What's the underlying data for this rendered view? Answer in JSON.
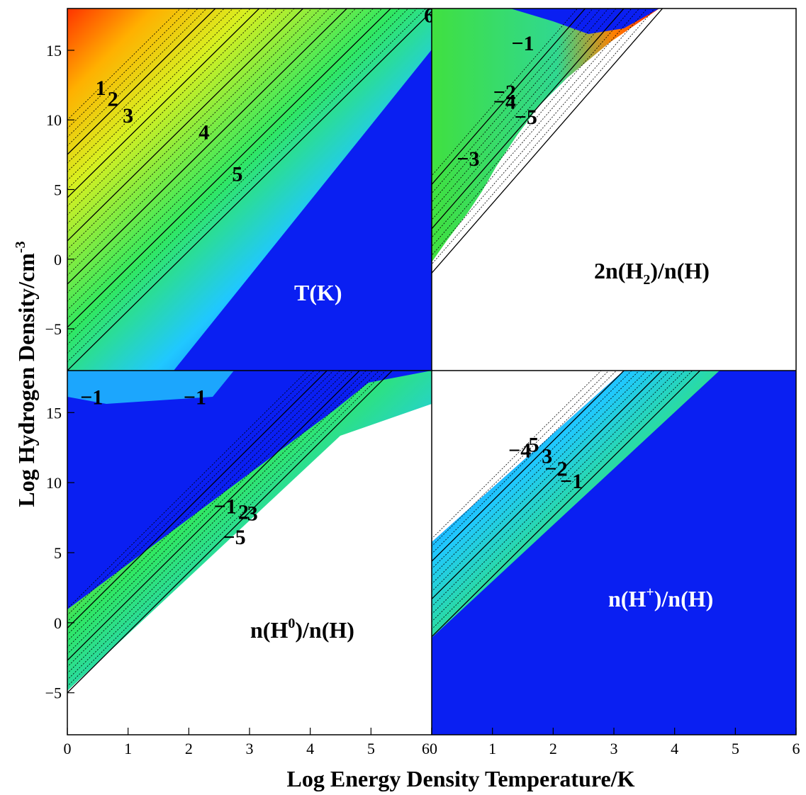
{
  "chart_data": {
    "type": "heatmap",
    "xlabel": "Log Energy Density Temperature/K",
    "ylabel_main": "Log Hydrogen Density/cm",
    "ylabel_sup": "-3",
    "xlim": [
      0,
      6
    ],
    "ylim": [
      -8,
      18
    ],
    "x_ticks": [
      0,
      1,
      2,
      3,
      4,
      5,
      6
    ],
    "y_ticks": [
      -5,
      0,
      5,
      10,
      15
    ],
    "y_tick_labels": [
      "−5",
      "0",
      "5",
      "10",
      "15"
    ],
    "colors": {
      "background": "#0a1ff2",
      "white": "#ffffff"
    },
    "panels": [
      {
        "id": "temperature",
        "title": "T(K)",
        "title_color": "#ffffff",
        "contour_labels": [
          {
            "text": "1",
            "x": 0.55,
            "y": 11.8
          },
          {
            "text": "2",
            "x": 0.75,
            "y": 11.0
          },
          {
            "text": "3",
            "x": 1.0,
            "y": 9.8
          },
          {
            "text": "4",
            "x": 2.25,
            "y": 8.6
          },
          {
            "text": "5",
            "x": 2.8,
            "y": 5.6
          },
          {
            "text": "6",
            "x": 5.96,
            "y": 17.0
          }
        ]
      },
      {
        "id": "h2",
        "title_main": "2n(H",
        "title_sub": "2",
        "title_tail": ")/n(H)",
        "title_color": "#000000",
        "contour_labels": [
          {
            "text": "−1",
            "x": 1.5,
            "y": 15.0
          },
          {
            "text": "−2",
            "x": 1.2,
            "y": 11.5
          },
          {
            "text": "−4",
            "x": 1.2,
            "y": 10.8
          },
          {
            "text": "−5",
            "x": 1.55,
            "y": 9.7
          },
          {
            "text": "−3",
            "x": 0.6,
            "y": 6.7
          }
        ]
      },
      {
        "id": "h0",
        "title_main": "n(H",
        "title_sup": "0",
        "title_tail": ")/n(H)",
        "title_color": "#000000",
        "contour_labels": [
          {
            "text": "−1",
            "x": 0.4,
            "y": 15.6
          },
          {
            "text": "−1",
            "x": 2.1,
            "y": 15.6
          },
          {
            "text": "−1",
            "x": 2.6,
            "y": 7.8
          },
          {
            "text": "2",
            "x": 2.9,
            "y": 7.4
          },
          {
            "text": "3",
            "x": 3.05,
            "y": 7.3
          },
          {
            "text": "−5",
            "x": 2.75,
            "y": 5.6
          }
        ]
      },
      {
        "id": "hplus",
        "title_main": "n(H",
        "title_sup": "+",
        "title_tail": ")/n(H)",
        "title_color": "#ffffff",
        "contour_labels": [
          {
            "text": "−4",
            "x": 1.45,
            "y": 11.8
          },
          {
            "text": "5",
            "x": 1.68,
            "y": 12.2
          },
          {
            "text": "3",
            "x": 1.9,
            "y": 11.4
          },
          {
            "text": "−2",
            "x": 2.05,
            "y": 10.5
          },
          {
            "text": "−1",
            "x": 2.3,
            "y": 9.6
          }
        ]
      }
    ]
  }
}
